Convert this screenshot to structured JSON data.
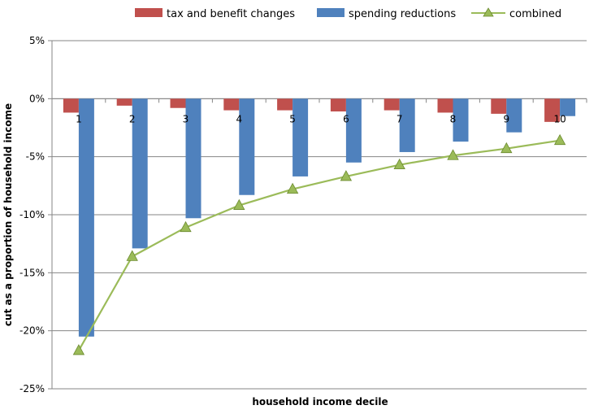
{
  "chart_data": {
    "type": "bar",
    "title": "",
    "xlabel": "household income decile",
    "ylabel": "cut as a proportion of household income",
    "ylim": [
      -25,
      5
    ],
    "ytick_values": [
      5,
      0,
      -5,
      -10,
      -15,
      -20,
      -25
    ],
    "ytick_labels": [
      "5%",
      "0%",
      "-5%",
      "-10%",
      "-15%",
      "-20%",
      "-25%"
    ],
    "categories": [
      "1",
      "2",
      "3",
      "4",
      "5",
      "6",
      "7",
      "8",
      "9",
      "10"
    ],
    "grid": true,
    "legend_position": "top",
    "series": [
      {
        "name": "tax and benefit changes",
        "type": "bar",
        "color": "#C0504D",
        "values": [
          -1.2,
          -0.6,
          -0.8,
          -1.0,
          -1.0,
          -1.1,
          -1.0,
          -1.2,
          -1.3,
          -2.0
        ]
      },
      {
        "name": "spending reductions",
        "type": "bar",
        "color": "#4F81BD",
        "values": [
          -20.5,
          -12.9,
          -10.3,
          -8.3,
          -6.7,
          -5.5,
          -4.6,
          -3.7,
          -2.9,
          -1.5
        ]
      },
      {
        "name": "combined",
        "type": "line",
        "color": "#9BBB59",
        "values": [
          -21.7,
          -13.6,
          -11.1,
          -9.2,
          -7.8,
          -6.7,
          -5.7,
          -4.9,
          -4.3,
          -3.6
        ]
      }
    ]
  }
}
